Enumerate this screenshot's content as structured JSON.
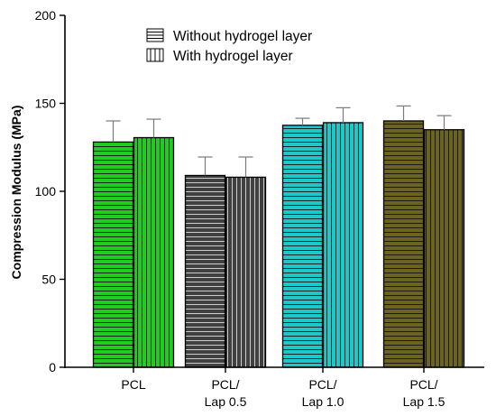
{
  "chart_data": {
    "type": "bar",
    "title": "",
    "xlabel": "",
    "ylabel": "Compression Modulus (MPa)",
    "ylim": [
      0,
      200
    ],
    "yticks": [
      0,
      50,
      100,
      150,
      200
    ],
    "grid": false,
    "legend_position": "top-center",
    "categories": [
      [
        "PCL"
      ],
      [
        "PCL/",
        "Lap 0.5"
      ],
      [
        "PCL/",
        "Lap 1.0"
      ],
      [
        "PCL/",
        "Lap 1.5"
      ]
    ],
    "group_colors": [
      "#1fcc1f",
      "#404040",
      "#1ec8c8",
      "#6b6420"
    ],
    "series": [
      {
        "name": "Without hydrogel layer",
        "pattern": "horizontal",
        "values": [
          128,
          109,
          137.5,
          140
        ],
        "errors": [
          12,
          10.5,
          4,
          8.5
        ]
      },
      {
        "name": "With hydrogel layer",
        "pattern": "vertical",
        "values": [
          130.5,
          108,
          139,
          135
        ],
        "errors": [
          10.5,
          11.5,
          8.5,
          8
        ]
      }
    ]
  }
}
